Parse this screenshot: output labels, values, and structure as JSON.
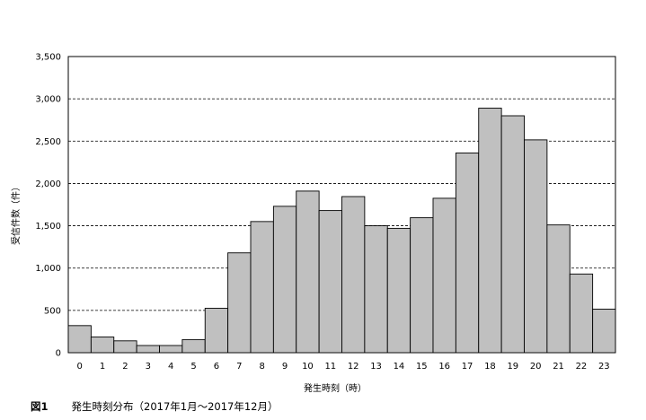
{
  "chart_data": {
    "type": "bar",
    "categories": [
      "0",
      "1",
      "2",
      "3",
      "4",
      "5",
      "6",
      "7",
      "8",
      "9",
      "10",
      "11",
      "12",
      "13",
      "14",
      "15",
      "16",
      "17",
      "18",
      "19",
      "20",
      "21",
      "22",
      "23"
    ],
    "values": [
      320,
      185,
      140,
      85,
      85,
      155,
      525,
      1180,
      1550,
      1730,
      1910,
      1680,
      1845,
      1500,
      1470,
      1595,
      1825,
      2360,
      2890,
      2800,
      2515,
      1510,
      930,
      515
    ],
    "y_tick_labels": [
      "0",
      "500",
      "1,000",
      "1,500",
      "2,000",
      "2,500",
      "3,000",
      "3,500"
    ],
    "ylim": [
      0,
      3500
    ],
    "ylabel": "受信件数（件）",
    "xlabel": "発生時刻（時）",
    "grid": true,
    "bar_color": "#c0c0c0",
    "bar_edge_color": "#000000"
  },
  "caption": {
    "label": "図1",
    "text": "発生時刻分布（2017年1月～2017年12月）"
  }
}
